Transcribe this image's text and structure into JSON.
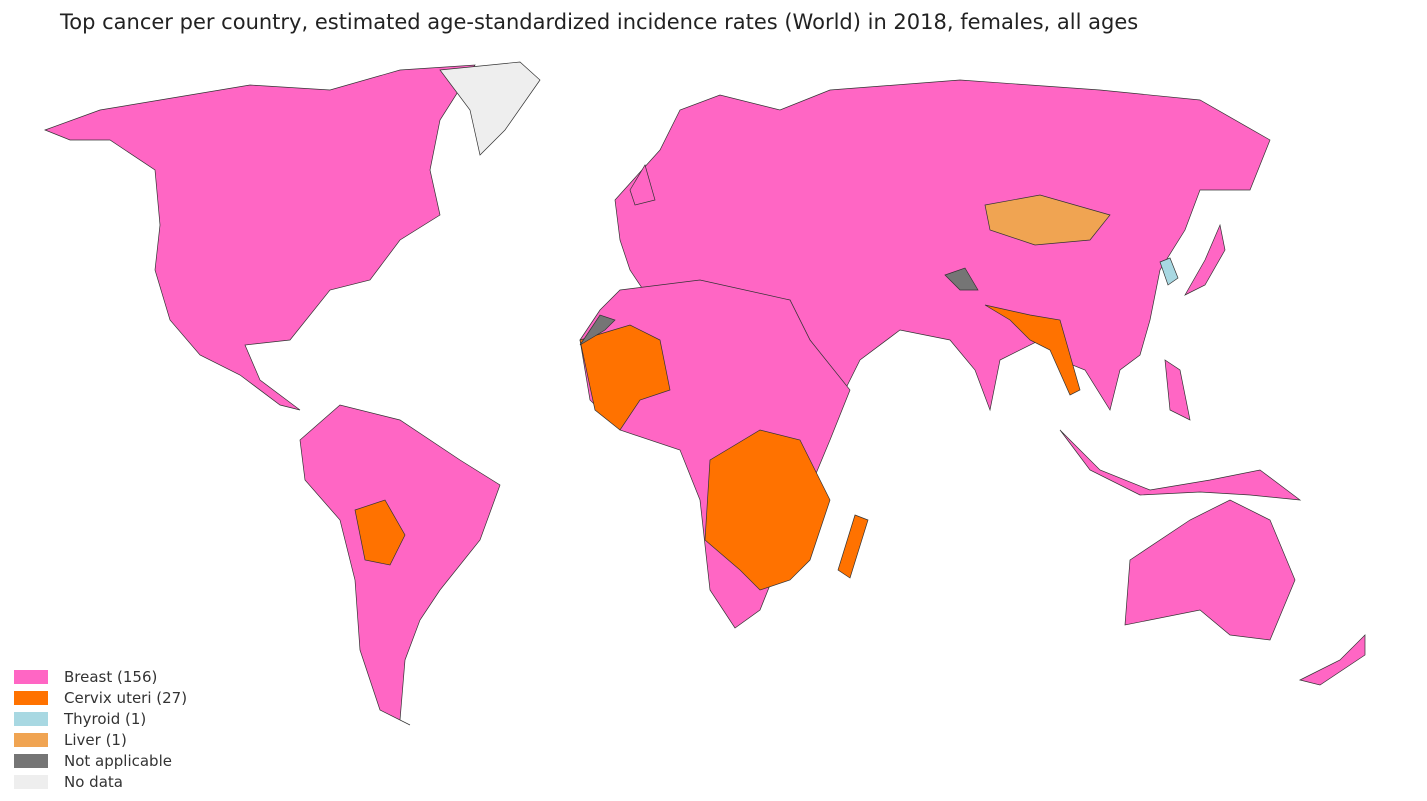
{
  "title": "Top cancer per country, estimated age-standardized incidence rates (World) in 2018, females, all ages",
  "legend": [
    {
      "label": "Breast (156)",
      "color": "#ff66c4"
    },
    {
      "label": "Cervix uteri (27)",
      "color": "#ff7200"
    },
    {
      "label": "Thyroid (1)",
      "color": "#a8d8e2"
    },
    {
      "label": "Liver (1)",
      "color": "#f0a452"
    },
    {
      "label": "Not applicable",
      "color": "#757575"
    },
    {
      "label": "No data",
      "color": "#eeeeee"
    }
  ]
}
